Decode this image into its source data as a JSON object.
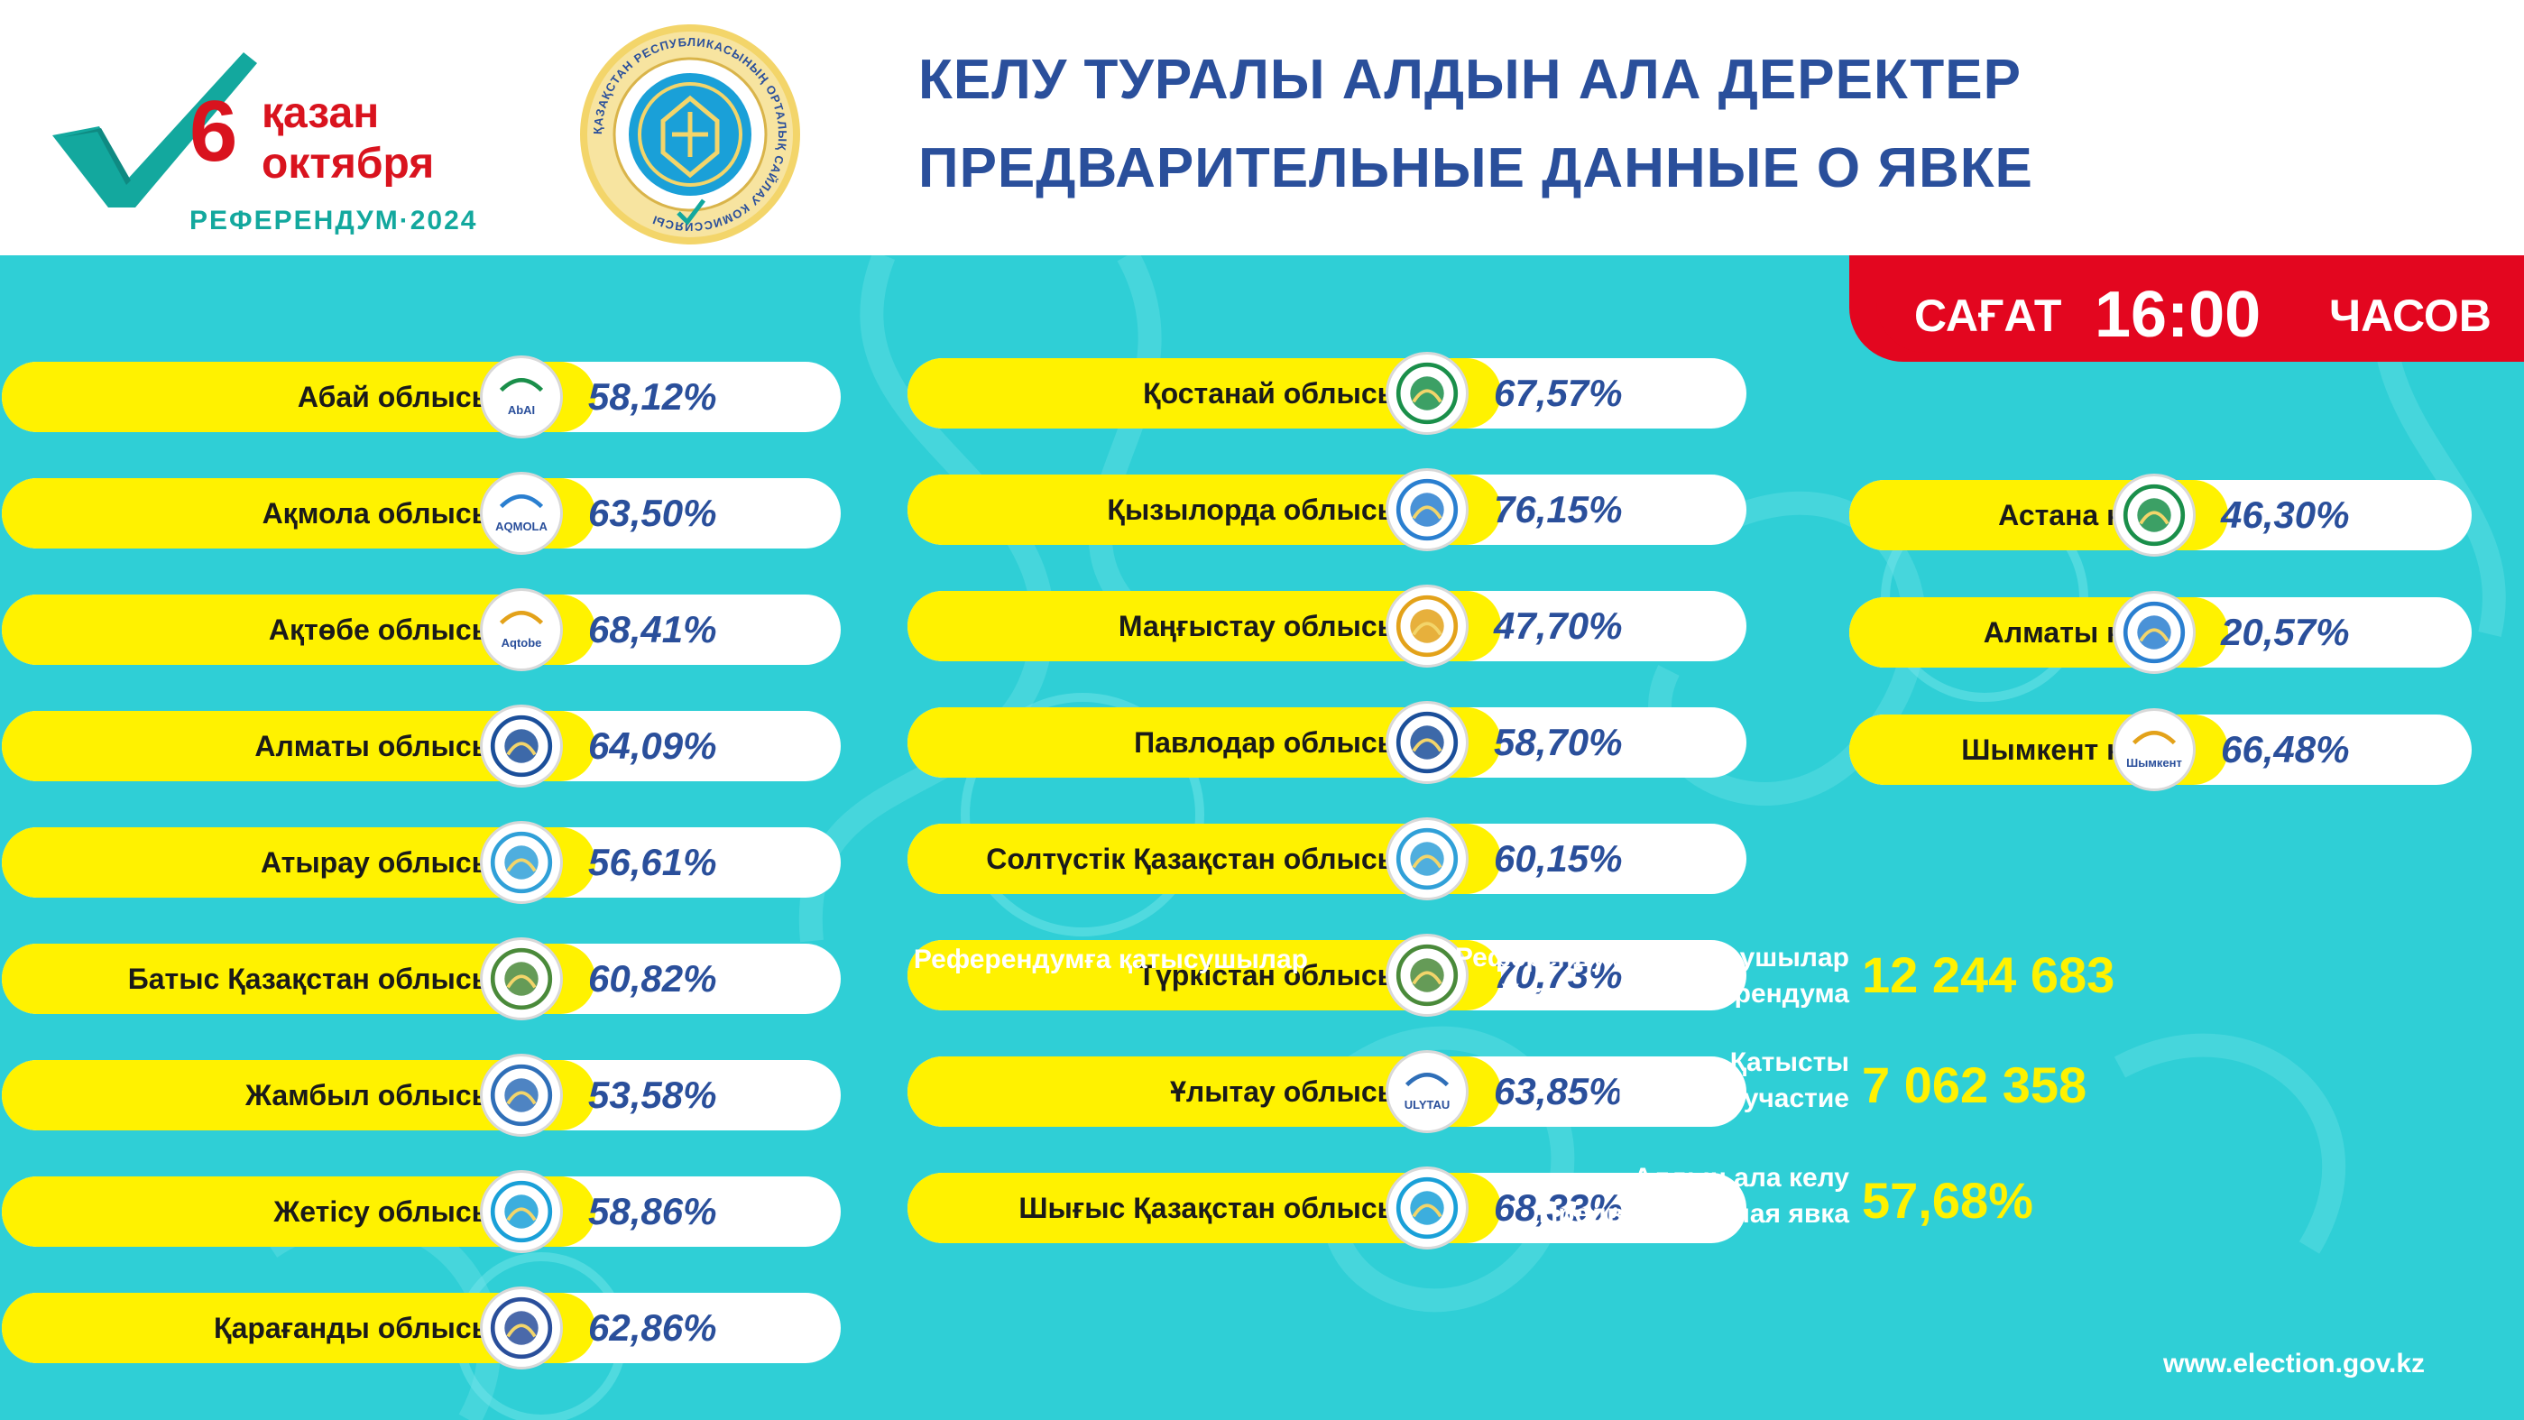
{
  "header": {
    "logo": {
      "day": "6",
      "month_kz": "қазан",
      "month_ru": "октября",
      "subtitle": "РЕФЕРЕНДУМ·2024"
    },
    "seal_label": "ҚАЗАҚСТАН РЕСПУБЛИКАСЫНЫҢ ОРТАЛЫҚ САЙЛАУ КОМИССИЯСЫ",
    "title_kz": "КЕЛУ ТУРАЛЫ АЛДЫН АЛА ДЕРЕКТЕР",
    "title_ru": "ПРЕДВАРИТЕЛЬНЫЕ ДАННЫЕ О ЯВКЕ"
  },
  "time": {
    "prefix": "САҒАТ",
    "value": "16:00",
    "suffix": "ЧАСОВ"
  },
  "regions_left": [
    {
      "name": "Абай облысы",
      "value": "58,12%",
      "percent": 58.12,
      "emblem": "abai-emblem-icon",
      "emblem_text": "AbAI"
    },
    {
      "name": "Ақмола облысы",
      "value": "63,50%",
      "percent": 63.5,
      "emblem": "akmola-emblem-icon",
      "emblem_text": "AQMOLA"
    },
    {
      "name": "Ақтөбе облысы",
      "value": "68,41%",
      "percent": 68.41,
      "emblem": "aktobe-emblem-icon",
      "emblem_text": "Aqtobe"
    },
    {
      "name": "Алматы облысы",
      "value": "64,09%",
      "percent": 64.09,
      "emblem": "almaty-region-emblem-icon",
      "emblem_text": ""
    },
    {
      "name": "Атырау облысы",
      "value": "56,61%",
      "percent": 56.61,
      "emblem": "atyrau-emblem-icon",
      "emblem_text": ""
    },
    {
      "name": "Батыс Қазақстан облысы",
      "value": "60,82%",
      "percent": 60.82,
      "emblem": "west-kazakhstan-emblem-icon",
      "emblem_text": ""
    },
    {
      "name": "Жамбыл облысы",
      "value": "53,58%",
      "percent": 53.58,
      "emblem": "zhambyl-emblem-icon",
      "emblem_text": ""
    },
    {
      "name": "Жетісу облысы",
      "value": "58,86%",
      "percent": 58.86,
      "emblem": "zhetisu-emblem-icon",
      "emblem_text": ""
    },
    {
      "name": "Қарағанды облысы",
      "value": "62,86%",
      "percent": 62.86,
      "emblem": "karaganda-emblem-icon",
      "emblem_text": ""
    }
  ],
  "regions_middle": [
    {
      "name": "Қостанай облысы",
      "value": "67,57%",
      "percent": 67.57,
      "emblem": "kostanay-emblem-icon",
      "emblem_text": ""
    },
    {
      "name": "Қызылорда облысы",
      "value": "76,15%",
      "percent": 76.15,
      "emblem": "kyzylorda-emblem-icon",
      "emblem_text": ""
    },
    {
      "name": "Маңғыстау облысы",
      "value": "47,70%",
      "percent": 47.7,
      "emblem": "mangystau-emblem-icon",
      "emblem_text": ""
    },
    {
      "name": "Павлодар облысы",
      "value": "58,70%",
      "percent": 58.7,
      "emblem": "pavlodar-emblem-icon",
      "emblem_text": ""
    },
    {
      "name": "Солтүстік Қазақстан облысы",
      "value": "60,15%",
      "percent": 60.15,
      "emblem": "north-kazakhstan-emblem-icon",
      "emblem_text": ""
    },
    {
      "name": "Түркістан облысы",
      "value": "70,73%",
      "percent": 70.73,
      "emblem": "turkestan-emblem-icon",
      "emblem_text": ""
    },
    {
      "name": "Ұлытау облысы",
      "value": "63,85%",
      "percent": 63.85,
      "emblem": "ulytau-emblem-icon",
      "emblem_text": "ULYTAU"
    },
    {
      "name": "Шығыс Қазақстан облысы",
      "value": "68,33%",
      "percent": 68.33,
      "emblem": "east-kazakhstan-emblem-icon",
      "emblem_text": ""
    }
  ],
  "cities": [
    {
      "name": "Астана қ.",
      "value": "46,30%",
      "percent": 46.3,
      "emblem": "astana-emblem-icon",
      "emblem_text": ""
    },
    {
      "name": "Алматы қ.",
      "value": "20,57%",
      "percent": 20.57,
      "emblem": "almaty-city-emblem-icon",
      "emblem_text": ""
    },
    {
      "name": "Шымкент қ.",
      "value": "66,48%",
      "percent": 66.48,
      "emblem": "shymkent-emblem-icon",
      "emblem_text": "Шымкент"
    }
  ],
  "summary": {
    "participants_kz": "Референдумға қатысушылар",
    "participants_ru": "Участников референдума",
    "participants_value": "12 244 683",
    "voted_kz": "Қатысты",
    "voted_ru": "Приняло участие",
    "voted_value": "7 062 358",
    "turnout_kz": "Алдын ала келу",
    "turnout_ru": "Предварительная явка",
    "turnout_value": "57,68%"
  },
  "website": "www.election.gov.kz",
  "colors": {
    "teal": "#2fcfd6",
    "yellow": "#fff200",
    "red": "#e3061f",
    "blue": "#2a4f9b",
    "brand_green": "#13a89e"
  }
}
